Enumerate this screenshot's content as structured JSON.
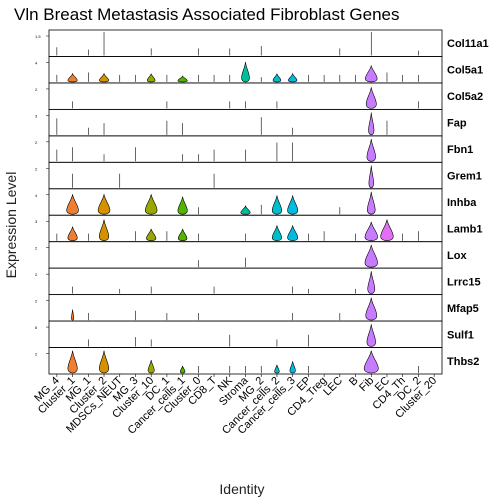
{
  "chart_data": {
    "type": "violin",
    "title": "Vln Breast Metastasis Associated Fibroblast Genes",
    "xlabel": "Identity",
    "ylabel": "Expression Level",
    "identities": [
      "MG_4",
      "Cluster_1",
      "MG_1",
      "Cluster_2",
      "MDSCs_NEUT",
      "MG_3",
      "Cluster_10",
      "DC_1",
      "Cancer_cells_1",
      "Cluster_0",
      "CD8_T",
      "NK",
      "Stroma",
      "MG_2",
      "Cancer_cells_2",
      "Cancer_cells_3",
      "EP",
      "CD4_Treg",
      "LEC",
      "B",
      "Fib",
      "EC",
      "CD4_Th",
      "DC_2",
      "Cluster_20"
    ],
    "colors": [
      "#F8766D",
      "#EE7E32",
      "#E38900",
      "#D49200",
      "#C49A00",
      "#B0A100",
      "#99A800",
      "#7CAE00",
      "#53B400",
      "#00B81F",
      "#00BC56",
      "#00BF7D",
      "#00C09A",
      "#00C0B4",
      "#00BECC",
      "#00BAE0",
      "#00B4F0",
      "#00A9FF",
      "#619CFF",
      "#9E8FFF",
      "#C77CFF",
      "#E46EF6",
      "#F564E3",
      "#FF61C9",
      "#FF67A4"
    ],
    "genes": [
      {
        "name": "Col11a1",
        "ytick": "1.5",
        "violins": [],
        "spikes": [
          0.35,
          0,
          0.25,
          1,
          0,
          0,
          0.3,
          0,
          0,
          0.3,
          0,
          0.3,
          0,
          0.4,
          0,
          0,
          0,
          0,
          0.3,
          0,
          1,
          0,
          0,
          0.2,
          0
        ]
      },
      {
        "name": "Col5a1",
        "ytick": "4",
        "violins": [
          {
            "i": 1,
            "w": 0.6,
            "h": 0.35
          },
          {
            "i": 3,
            "w": 0.6,
            "h": 0.35
          },
          {
            "i": 6,
            "w": 0.5,
            "h": 0.35
          },
          {
            "i": 8,
            "w": 0.6,
            "h": 0.25
          },
          {
            "i": 12,
            "w": 0.5,
            "h": 0.85
          },
          {
            "i": 14,
            "w": 0.5,
            "h": 0.35
          },
          {
            "i": 15,
            "w": 0.55,
            "h": 0.35
          },
          {
            "i": 20,
            "w": 0.75,
            "h": 0.7
          }
        ],
        "spikes": [
          0.3,
          0,
          0.4,
          0,
          0.3,
          0.3,
          0,
          0.3,
          0,
          0.3,
          0.3,
          0.3,
          0,
          0.2,
          0,
          0,
          0.3,
          0.3,
          0.3,
          0.3,
          0,
          0.4,
          0.3,
          0.3,
          0
        ]
      },
      {
        "name": "Col5a2",
        "ytick": "2",
        "violins": [
          {
            "i": 20,
            "w": 0.65,
            "h": 0.9
          }
        ],
        "spikes": [
          0,
          0.3,
          0,
          0,
          0,
          0,
          0,
          0.3,
          0,
          0,
          0,
          0.3,
          0.3,
          0,
          0.3,
          0,
          0,
          0,
          0,
          0,
          0,
          0,
          0,
          0.3,
          0
        ]
      },
      {
        "name": "Fap",
        "ytick": "3",
        "violins": [
          {
            "i": 20,
            "w": 0.35,
            "h": 0.95
          }
        ],
        "spikes": [
          0.7,
          0,
          0.3,
          0.5,
          0,
          0,
          0,
          0.6,
          0.5,
          0,
          0,
          0,
          0,
          0.75,
          0,
          0.3,
          0,
          0,
          0,
          0,
          0,
          0.6,
          0,
          0,
          0
        ]
      },
      {
        "name": "Fbn1",
        "ytick": "2",
        "violins": [
          {
            "i": 20,
            "w": 0.55,
            "h": 0.95
          }
        ],
        "spikes": [
          0.5,
          0.6,
          0,
          0.3,
          0,
          0.6,
          0,
          0,
          0.3,
          0.3,
          0.5,
          0,
          0.5,
          0,
          0.8,
          0.8,
          0,
          0,
          0,
          0,
          0,
          0,
          0,
          0,
          0
        ]
      },
      {
        "name": "Grem1",
        "ytick": "2",
        "violins": [
          {
            "i": 20,
            "w": 0.3,
            "h": 0.95
          }
        ],
        "spikes": [
          0,
          0.6,
          0,
          0,
          0.6,
          0,
          0,
          0,
          0,
          0,
          0.6,
          0,
          0,
          0,
          0,
          0,
          0,
          0,
          0,
          0,
          0,
          0,
          0,
          0,
          0
        ]
      },
      {
        "name": "Inhba",
        "ytick": "4",
        "violins": [
          {
            "i": 1,
            "w": 0.75,
            "h": 0.85
          },
          {
            "i": 3,
            "w": 0.75,
            "h": 0.85
          },
          {
            "i": 6,
            "w": 0.75,
            "h": 0.85
          },
          {
            "i": 8,
            "w": 0.6,
            "h": 0.75
          },
          {
            "i": 12,
            "w": 0.6,
            "h": 0.35
          },
          {
            "i": 14,
            "w": 0.6,
            "h": 0.8
          },
          {
            "i": 15,
            "w": 0.65,
            "h": 0.8
          },
          {
            "i": 20,
            "w": 0.5,
            "h": 0.95
          }
        ],
        "spikes": [
          0,
          0,
          0,
          0,
          0,
          0,
          0,
          0,
          0,
          0.3,
          0,
          0,
          0,
          0.4,
          0,
          0,
          0,
          0,
          0.3,
          0,
          0,
          0,
          0,
          0,
          0
        ]
      },
      {
        "name": "Lamb1",
        "ytick": "3",
        "violins": [
          {
            "i": 1,
            "w": 0.6,
            "h": 0.6
          },
          {
            "i": 3,
            "w": 0.6,
            "h": 0.9
          },
          {
            "i": 6,
            "w": 0.6,
            "h": 0.5
          },
          {
            "i": 8,
            "w": 0.55,
            "h": 0.5
          },
          {
            "i": 14,
            "w": 0.6,
            "h": 0.65
          },
          {
            "i": 15,
            "w": 0.65,
            "h": 0.65
          },
          {
            "i": 20,
            "w": 0.8,
            "h": 0.8
          },
          {
            "i": 21,
            "w": 0.8,
            "h": 0.9
          }
        ],
        "spikes": [
          0.3,
          0,
          0.3,
          0,
          0,
          0.4,
          0,
          0.4,
          0,
          0.3,
          0,
          0,
          0.3,
          0,
          0,
          0,
          0.3,
          0.4,
          0,
          0.3,
          0,
          0,
          0.3,
          0.4,
          0
        ]
      },
      {
        "name": "Lox",
        "ytick": "2",
        "violins": [
          {
            "i": 20,
            "w": 0.8,
            "h": 0.95
          }
        ],
        "spikes": [
          0,
          0,
          0,
          0,
          0,
          0,
          0,
          0,
          0,
          0.3,
          0,
          0,
          0.4,
          0,
          0,
          0,
          0,
          0,
          0,
          0,
          0,
          0,
          0,
          0,
          0
        ]
      },
      {
        "name": "Lrrc15",
        "ytick": "2",
        "violins": [
          {
            "i": 20,
            "w": 0.45,
            "h": 0.95
          }
        ],
        "spikes": [
          0,
          0.3,
          0,
          0,
          0.2,
          0,
          0.3,
          0,
          0,
          0,
          0.3,
          0,
          0,
          0,
          0,
          0.3,
          0.2,
          0,
          0,
          0.2,
          0,
          0,
          0,
          0,
          0
        ]
      },
      {
        "name": "Mfap5",
        "ytick": "2",
        "violins": [
          {
            "i": 1,
            "w": 0.15,
            "h": 0.45
          },
          {
            "i": 20,
            "w": 0.7,
            "h": 0.95
          }
        ],
        "spikes": [
          0,
          0,
          0.3,
          0,
          0,
          0.4,
          0,
          0.3,
          0,
          0.3,
          0,
          0,
          0,
          0,
          0,
          0.3,
          0,
          0,
          0.3,
          0,
          0,
          0,
          0,
          0,
          0
        ]
      },
      {
        "name": "Sulf1",
        "ytick": "6",
        "violins": [
          {
            "i": 20,
            "w": 0.55,
            "h": 0.95
          }
        ],
        "spikes": [
          0,
          0,
          0.3,
          0,
          0,
          0.4,
          0.3,
          0,
          0,
          0,
          0,
          0.5,
          0,
          0,
          0.3,
          0,
          0.5,
          0,
          0,
          0,
          0,
          0,
          0,
          0,
          0
        ]
      },
      {
        "name": "Thbs2",
        "ytick": "2",
        "violins": [
          {
            "i": 1,
            "w": 0.6,
            "h": 0.95
          },
          {
            "i": 3,
            "w": 0.6,
            "h": 0.95
          },
          {
            "i": 6,
            "w": 0.4,
            "h": 0.55
          },
          {
            "i": 8,
            "w": 0.3,
            "h": 0.3
          },
          {
            "i": 14,
            "w": 0.3,
            "h": 0.35
          },
          {
            "i": 15,
            "w": 0.35,
            "h": 0.5
          },
          {
            "i": 20,
            "w": 0.9,
            "h": 0.95
          }
        ],
        "spikes": [
          0,
          0,
          0,
          0,
          0,
          0,
          0,
          0,
          0,
          0.3,
          0,
          0.3,
          0.3,
          0.3,
          0,
          0,
          0.3,
          0,
          0,
          0,
          0,
          0,
          0,
          0.3,
          0
        ]
      }
    ]
  }
}
